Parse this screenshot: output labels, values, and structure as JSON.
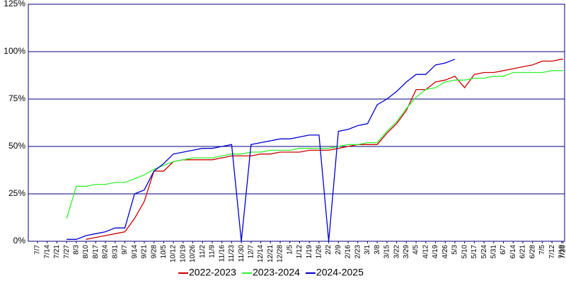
{
  "chart_data": {
    "type": "line",
    "categories": [
      "7/7",
      "7/14",
      "7/21",
      "7/27",
      "8/3",
      "8/10",
      "8/17",
      "8/24",
      "8/31",
      "9/7",
      "9/14",
      "9/21",
      "9/28",
      "10/5",
      "10/12",
      "10/19",
      "10/26",
      "11/2",
      "11/9",
      "11/16",
      "11/23",
      "11/30",
      "12/7",
      "12/14",
      "12/21",
      "12/28",
      "1/5",
      "1/12",
      "1/19",
      "1/26",
      "2/2",
      "2/9",
      "2/16",
      "2/23",
      "3/1",
      "3/8",
      "3/15",
      "3/22",
      "3/29",
      "4/5",
      "4/12",
      "4/19",
      "4/26",
      "5/3",
      "5/10",
      "5/17",
      "5/24",
      "5/31",
      "6/7",
      "6/14",
      "6/21",
      "6/28",
      "7/5",
      "7/12",
      "7/19",
      "7/20"
    ],
    "series": [
      {
        "name": "2022-2023",
        "color": "#cc0000",
        "values": [
          null,
          null,
          null,
          null,
          null,
          1,
          2,
          3,
          4,
          5,
          12,
          21,
          37,
          37,
          42,
          43,
          43,
          43,
          43,
          44,
          45,
          45,
          45,
          46,
          46,
          47,
          47,
          47,
          48,
          48,
          48,
          49,
          50,
          51,
          51,
          51,
          57,
          62,
          69,
          80,
          80,
          84,
          85,
          87,
          81,
          88,
          89,
          89,
          90,
          91,
          92,
          93,
          95,
          95,
          96,
          96
        ]
      },
      {
        "name": "2023-2024",
        "color": "#33ee33",
        "values": [
          null,
          null,
          null,
          12,
          29,
          29,
          30,
          30,
          31,
          31,
          33,
          35,
          38,
          40,
          42,
          43,
          44,
          44,
          44,
          45,
          46,
          46,
          47,
          47,
          48,
          48,
          48,
          49,
          49,
          49,
          49,
          50,
          51,
          51,
          52,
          52,
          58,
          63,
          70,
          76,
          80,
          81,
          84,
          85,
          85,
          86,
          86,
          87,
          87,
          89,
          89,
          89,
          89,
          90,
          90,
          90
        ]
      },
      {
        "name": "2024-2025",
        "color": "#0000cc",
        "values": [
          null,
          null,
          null,
          1,
          1,
          3,
          4,
          5,
          7,
          7,
          25,
          27,
          37,
          41,
          46,
          47,
          48,
          49,
          49,
          50,
          51,
          0,
          51,
          52,
          53,
          54,
          54,
          55,
          56,
          56,
          0,
          58,
          59,
          61,
          62,
          72,
          75,
          79,
          84,
          88,
          88,
          93,
          94,
          96,
          null,
          null,
          null,
          null,
          null,
          null,
          null,
          null,
          null,
          null,
          null,
          null
        ]
      }
    ],
    "ylim": [
      0,
      125
    ],
    "yticks": [
      {
        "value": 0,
        "label": "0%"
      },
      {
        "value": 25,
        "label": "25%"
      },
      {
        "value": 50,
        "label": "50%"
      },
      {
        "value": 75,
        "label": "75%"
      },
      {
        "value": 100,
        "label": "100%"
      },
      {
        "value": 125,
        "label": "125%"
      }
    ],
    "grid": true,
    "grid_color": "#000080",
    "legend": "bottom"
  }
}
